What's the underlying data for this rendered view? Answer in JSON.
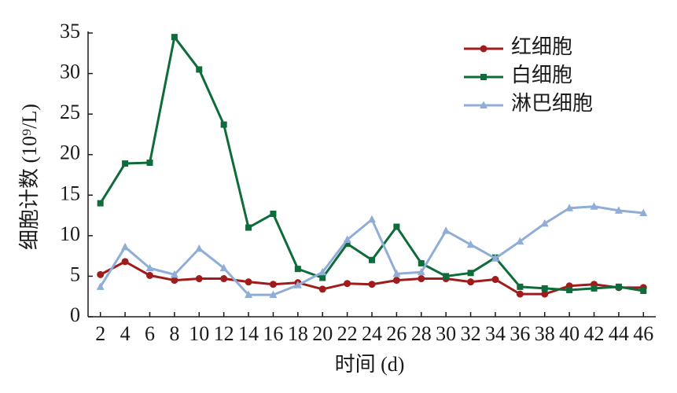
{
  "chart_data": {
    "type": "line",
    "x": [
      2,
      4,
      6,
      8,
      10,
      12,
      14,
      16,
      18,
      20,
      22,
      24,
      26,
      28,
      30,
      32,
      34,
      36,
      38,
      40,
      42,
      44,
      46
    ],
    "xlim": [
      1,
      47
    ],
    "xticks": [
      2,
      4,
      6,
      8,
      10,
      12,
      14,
      16,
      18,
      20,
      22,
      24,
      26,
      28,
      30,
      32,
      34,
      36,
      38,
      40,
      42,
      44,
      46
    ],
    "ylim": [
      0,
      35
    ],
    "yticks": [
      0,
      5,
      10,
      15,
      20,
      25,
      30,
      35
    ],
    "xlabel": "时间 (d)",
    "ylabel": "细胞计数 (10⁹/L)",
    "grid": false,
    "legend": "upper right",
    "series": [
      {
        "name": "红细胞",
        "color": "#a01c1c",
        "marker": "circle",
        "values": [
          5.2,
          6.8,
          5.1,
          4.5,
          4.7,
          4.7,
          4.3,
          4.0,
          4.2,
          3.4,
          4.1,
          4.0,
          4.5,
          4.7,
          4.7,
          4.3,
          4.6,
          2.8,
          2.8,
          3.8,
          4.0,
          3.6,
          3.6
        ]
      },
      {
        "name": "白细胞",
        "color": "#0e6b3a",
        "marker": "square",
        "values": [
          14.0,
          18.9,
          19.0,
          34.5,
          30.5,
          23.7,
          11.0,
          12.7,
          5.9,
          4.8,
          9.0,
          7.0,
          11.1,
          6.6,
          5.0,
          5.4,
          7.3,
          3.7,
          3.5,
          3.3,
          3.5,
          3.7,
          3.2
        ]
      },
      {
        "name": "淋巴细胞",
        "color": "#8fadd6",
        "marker": "triangle",
        "values": [
          3.7,
          8.6,
          6.0,
          5.2,
          8.4,
          6.0,
          2.7,
          2.7,
          3.9,
          5.5,
          9.5,
          12.0,
          5.3,
          5.5,
          10.6,
          8.9,
          7.2,
          9.3,
          11.5,
          13.4,
          13.6,
          13.1,
          12.8
        ]
      }
    ]
  }
}
